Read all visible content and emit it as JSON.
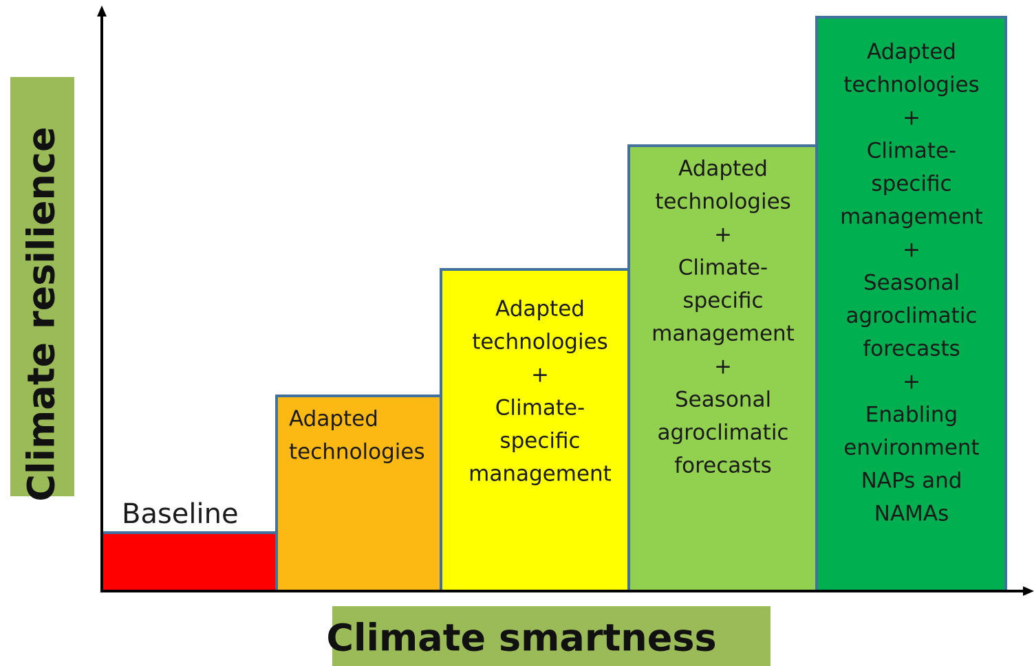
{
  "y_axis_label": "Climate resilience",
  "x_axis_label": "Climate smartness",
  "steps": [
    {
      "lines": [
        "Baseline"
      ]
    },
    {
      "lines": [
        "Adapted",
        "technologies"
      ]
    },
    {
      "lines": [
        "Adapted",
        "technologies",
        "+",
        "Climate-",
        "specific",
        "management"
      ]
    },
    {
      "lines": [
        "Adapted",
        "technologies",
        "+",
        "Climate-",
        "specific",
        "management",
        "+",
        "Seasonal",
        "agroclimatic",
        "forecasts"
      ]
    },
    {
      "lines": [
        "Adapted",
        "technologies",
        "+",
        "Climate-",
        "specific",
        "management",
        "+",
        "Seasonal",
        "agroclimatic",
        "forecasts",
        "+",
        "Enabling",
        "environment",
        "NAPs and",
        "NAMAs"
      ]
    }
  ]
}
